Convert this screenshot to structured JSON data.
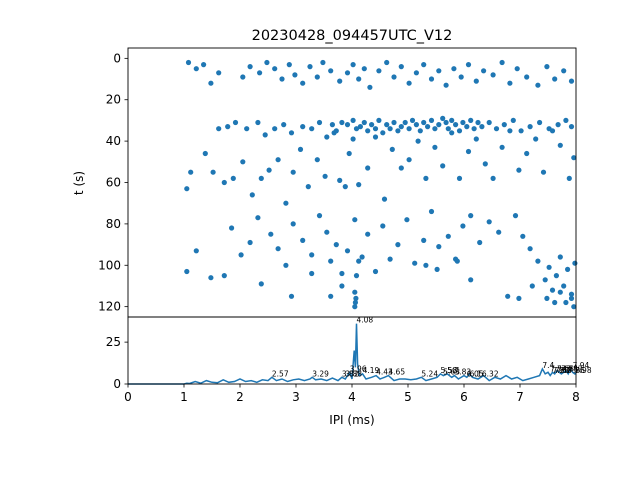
{
  "figure": {
    "title": "20230428_094457UTC_V12",
    "marker_color": "#1f77b4",
    "line_color": "#1f77b4"
  },
  "chart_data": [
    {
      "type": "scatter",
      "title": "20230428_094457UTC_V12",
      "xlabel": "",
      "ylabel": "t (s)",
      "xlim": [
        0,
        8
      ],
      "ylim": [
        125,
        -5
      ],
      "y_inverted": true,
      "x_ticks_shown": false,
      "yticks": [
        0,
        20,
        40,
        60,
        80,
        100,
        120
      ],
      "grid": false,
      "points": [
        [
          1.08,
          2
        ],
        [
          1.22,
          5
        ],
        [
          1.35,
          3
        ],
        [
          1.48,
          12
        ],
        [
          1.62,
          7
        ],
        [
          2.05,
          9
        ],
        [
          2.18,
          4
        ],
        [
          2.35,
          7
        ],
        [
          2.48,
          2
        ],
        [
          2.62,
          5
        ],
        [
          2.75,
          10
        ],
        [
          2.88,
          3
        ],
        [
          2.98,
          8
        ],
        [
          3.12,
          12
        ],
        [
          3.25,
          4
        ],
        [
          3.38,
          9
        ],
        [
          3.48,
          2
        ],
        [
          3.62,
          6
        ],
        [
          3.78,
          11
        ],
        [
          3.92,
          7
        ],
        [
          4.02,
          3
        ],
        [
          4.12,
          10
        ],
        [
          4.22,
          5
        ],
        [
          4.32,
          14
        ],
        [
          4.48,
          6
        ],
        [
          4.62,
          2
        ],
        [
          4.75,
          9
        ],
        [
          4.88,
          4
        ],
        [
          5.02,
          12
        ],
        [
          5.15,
          7
        ],
        [
          5.28,
          3
        ],
        [
          5.42,
          10
        ],
        [
          5.55,
          6
        ],
        [
          5.68,
          13
        ],
        [
          5.82,
          5
        ],
        [
          5.95,
          9
        ],
        [
          6.08,
          3
        ],
        [
          6.22,
          11
        ],
        [
          6.35,
          6
        ],
        [
          6.52,
          8
        ],
        [
          6.68,
          2
        ],
        [
          6.82,
          12
        ],
        [
          6.95,
          5
        ],
        [
          7.12,
          9
        ],
        [
          7.32,
          13
        ],
        [
          7.48,
          4
        ],
        [
          7.62,
          10
        ],
        [
          7.78,
          6
        ],
        [
          7.92,
          11
        ],
        [
          1.05,
          63
        ],
        [
          1.12,
          55
        ],
        [
          1.38,
          46
        ],
        [
          1.52,
          55
        ],
        [
          1.72,
          60
        ],
        [
          1.88,
          58
        ],
        [
          2.05,
          50
        ],
        [
          2.22,
          66
        ],
        [
          2.38,
          58
        ],
        [
          2.52,
          54
        ],
        [
          2.68,
          49
        ],
        [
          2.82,
          70
        ],
        [
          2.95,
          55
        ],
        [
          3.08,
          44
        ],
        [
          3.22,
          62
        ],
        [
          3.38,
          49
        ],
        [
          3.52,
          57
        ],
        [
          3.68,
          36
        ],
        [
          3.78,
          59
        ],
        [
          3.88,
          62
        ],
        [
          3.95,
          46
        ],
        [
          4.02,
          39
        ],
        [
          4.12,
          61
        ],
        [
          4.28,
          53
        ],
        [
          4.42,
          38
        ],
        [
          4.58,
          68
        ],
        [
          4.72,
          44
        ],
        [
          4.88,
          53
        ],
        [
          5.02,
          49
        ],
        [
          5.18,
          40
        ],
        [
          5.32,
          58
        ],
        [
          5.48,
          43
        ],
        [
          5.62,
          52
        ],
        [
          5.78,
          36
        ],
        [
          5.92,
          58
        ],
        [
          6.08,
          45
        ],
        [
          6.22,
          39
        ],
        [
          6.38,
          51
        ],
        [
          6.52,
          58
        ],
        [
          6.68,
          43
        ],
        [
          6.82,
          35
        ],
        [
          6.98,
          54
        ],
        [
          7.12,
          46
        ],
        [
          7.28,
          39
        ],
        [
          7.42,
          55
        ],
        [
          7.58,
          35
        ],
        [
          7.72,
          42
        ],
        [
          7.88,
          58
        ],
        [
          7.96,
          48
        ],
        [
          1.62,
          34
        ],
        [
          1.78,
          33
        ],
        [
          1.92,
          31
        ],
        [
          2.12,
          34
        ],
        [
          2.32,
          31
        ],
        [
          2.45,
          37
        ],
        [
          2.62,
          34
        ],
        [
          2.78,
          32
        ],
        [
          2.92,
          36
        ],
        [
          3.12,
          33
        ],
        [
          3.28,
          34
        ],
        [
          3.42,
          31
        ],
        [
          3.55,
          38
        ],
        [
          3.65,
          32
        ],
        [
          3.72,
          35
        ],
        [
          3.82,
          31
        ],
        [
          3.92,
          32
        ],
        [
          4.02,
          30
        ],
        [
          4.08,
          34
        ],
        [
          4.15,
          33
        ],
        [
          4.22,
          31
        ],
        [
          4.28,
          35
        ],
        [
          4.35,
          32
        ],
        [
          4.42,
          34
        ],
        [
          4.48,
          30
        ],
        [
          4.55,
          36
        ],
        [
          4.62,
          32
        ],
        [
          4.68,
          34
        ],
        [
          4.75,
          31
        ],
        [
          4.82,
          35
        ],
        [
          4.88,
          33
        ],
        [
          4.95,
          31
        ],
        [
          5.02,
          34
        ],
        [
          5.08,
          30
        ],
        [
          5.15,
          32
        ],
        [
          5.22,
          35
        ],
        [
          5.28,
          31
        ],
        [
          5.35,
          33
        ],
        [
          5.42,
          30
        ],
        [
          5.48,
          34
        ],
        [
          5.55,
          32
        ],
        [
          5.62,
          29
        ],
        [
          5.68,
          31
        ],
        [
          5.72,
          34
        ],
        [
          5.78,
          30
        ],
        [
          5.85,
          32
        ],
        [
          5.92,
          35
        ],
        [
          5.98,
          31
        ],
        [
          6.05,
          33
        ],
        [
          6.12,
          30
        ],
        [
          6.18,
          34
        ],
        [
          6.25,
          31
        ],
        [
          6.32,
          33
        ],
        [
          6.45,
          31
        ],
        [
          6.58,
          34
        ],
        [
          6.72,
          32
        ],
        [
          6.88,
          30
        ],
        [
          7.02,
          35
        ],
        [
          7.18,
          33
        ],
        [
          7.35,
          31
        ],
        [
          7.52,
          34
        ],
        [
          7.68,
          32
        ],
        [
          7.82,
          30
        ],
        [
          7.92,
          33
        ],
        [
          1.85,
          82
        ],
        [
          2.02,
          95
        ],
        [
          2.18,
          89
        ],
        [
          2.32,
          77
        ],
        [
          2.55,
          85
        ],
        [
          2.68,
          92
        ],
        [
          2.82,
          100
        ],
        [
          2.95,
          80
        ],
        [
          3.12,
          88
        ],
        [
          3.28,
          95
        ],
        [
          3.42,
          76
        ],
        [
          3.55,
          84
        ],
        [
          3.62,
          98
        ],
        [
          3.72,
          90
        ],
        [
          3.82,
          104
        ],
        [
          3.92,
          93
        ],
        [
          4.05,
          78
        ],
        [
          4.18,
          96
        ],
        [
          4.28,
          85
        ],
        [
          4.42,
          103
        ],
        [
          4.55,
          81
        ],
        [
          4.68,
          97
        ],
        [
          4.82,
          90
        ],
        [
          4.98,
          78
        ],
        [
          5.12,
          99
        ],
        [
          5.28,
          88
        ],
        [
          5.42,
          74
        ],
        [
          5.55,
          91
        ],
        [
          5.72,
          86
        ],
        [
          5.85,
          97
        ],
        [
          5.98,
          81
        ],
        [
          6.12,
          76
        ],
        [
          6.28,
          89
        ],
        [
          6.45,
          79
        ],
        [
          6.62,
          84
        ],
        [
          6.78,
          115
        ],
        [
          6.92,
          76
        ],
        [
          7.05,
          86
        ],
        [
          7.18,
          92
        ],
        [
          7.32,
          98
        ],
        [
          7.45,
          107
        ],
        [
          7.52,
          101
        ],
        [
          7.58,
          112
        ],
        [
          7.65,
          105
        ],
        [
          7.72,
          96
        ],
        [
          7.78,
          110
        ],
        [
          7.85,
          102
        ],
        [
          7.92,
          116
        ],
        [
          7.98,
          99
        ],
        [
          1.05,
          103
        ],
        [
          1.22,
          93
        ],
        [
          1.48,
          106
        ],
        [
          1.72,
          105
        ],
        [
          2.38,
          109
        ],
        [
          2.92,
          115
        ],
        [
          3.28,
          104
        ],
        [
          3.62,
          115
        ],
        [
          3.82,
          110
        ],
        [
          4.05,
          120
        ],
        [
          4.06,
          118
        ],
        [
          4.07,
          116
        ],
        [
          4.05,
          113
        ],
        [
          4.08,
          105
        ],
        [
          4.12,
          98
        ],
        [
          5.32,
          100
        ],
        [
          5.52,
          102
        ],
        [
          5.88,
          98
        ],
        [
          6.12,
          107
        ],
        [
          6.98,
          116
        ],
        [
          7.22,
          110
        ],
        [
          7.48,
          116
        ],
        [
          7.62,
          118
        ],
        [
          7.72,
          113
        ],
        [
          7.82,
          118
        ],
        [
          7.92,
          114
        ],
        [
          7.96,
          120
        ]
      ]
    },
    {
      "type": "line",
      "title": "",
      "xlabel": "IPI (ms)",
      "ylabel": "",
      "xlim": [
        0,
        8
      ],
      "ylim": [
        0,
        40
      ],
      "xticks": [
        0,
        1,
        2,
        3,
        4,
        5,
        6,
        7,
        8
      ],
      "yticks": [
        0,
        25
      ],
      "grid": false,
      "x": [
        0,
        0.5,
        1.0,
        1.05,
        1.1,
        1.2,
        1.3,
        1.4,
        1.5,
        1.6,
        1.7,
        1.8,
        1.9,
        2.0,
        2.1,
        2.2,
        2.3,
        2.4,
        2.5,
        2.57,
        2.65,
        2.75,
        2.85,
        2.95,
        3.05,
        3.15,
        3.25,
        3.29,
        3.35,
        3.45,
        3.55,
        3.65,
        3.75,
        3.82,
        3.88,
        3.92,
        3.96,
        4.0,
        4.04,
        4.06,
        4.08,
        4.1,
        4.13,
        4.19,
        4.25,
        4.35,
        4.43,
        4.5,
        4.58,
        4.65,
        4.75,
        4.85,
        4.95,
        5.05,
        5.15,
        5.24,
        5.32,
        5.42,
        5.52,
        5.58,
        5.63,
        5.7,
        5.78,
        5.83,
        5.9,
        6.0,
        6.05,
        6.1,
        6.15,
        6.25,
        6.35,
        6.45,
        6.55,
        6.65,
        6.75,
        6.85,
        6.95,
        7.05,
        7.15,
        7.25,
        7.35,
        7.4,
        7.45,
        7.5,
        7.54,
        7.58,
        7.62,
        7.66,
        7.7,
        7.74,
        7.78,
        7.82,
        7.86,
        7.9,
        7.94,
        7.98,
        8.0
      ],
      "y": [
        0,
        0,
        0,
        0.5,
        0.3,
        1.5,
        0.5,
        2,
        1,
        0.8,
        2.5,
        1,
        1.5,
        3,
        1.5,
        2,
        1,
        2.5,
        2,
        4,
        2,
        3,
        1.5,
        2.5,
        3,
        2,
        3,
        4,
        2.5,
        3,
        2,
        3.5,
        2,
        4,
        3,
        5,
        7,
        3,
        20,
        10,
        36,
        12,
        5,
        6,
        3,
        4,
        5,
        3,
        4,
        5,
        2,
        3,
        3,
        2.5,
        3,
        4,
        2,
        3,
        4,
        6,
        5,
        6,
        4,
        5,
        3,
        5,
        4,
        6,
        4,
        3,
        5,
        2,
        4,
        3,
        5,
        3,
        4,
        2,
        3,
        4,
        5,
        9,
        6,
        7,
        5,
        7,
        6,
        8,
        7,
        6,
        7,
        8,
        6,
        9,
        7,
        6,
        7
      ],
      "annotations": [
        {
          "x": 2.57,
          "y": 4,
          "text": "2.57"
        },
        {
          "x": 3.29,
          "y": 4,
          "text": "3.29"
        },
        {
          "x": 3.82,
          "y": 4,
          "text": "3.82"
        },
        {
          "x": 3.88,
          "y": 4,
          "text": "3.88"
        },
        {
          "x": 3.96,
          "y": 7,
          "text": "3.96"
        },
        {
          "x": 4.08,
          "y": 36,
          "text": "4.08"
        },
        {
          "x": 4.19,
          "y": 6,
          "text": "4.19"
        },
        {
          "x": 4.43,
          "y": 5,
          "text": "4.43"
        },
        {
          "x": 4.65,
          "y": 5,
          "text": "4.65"
        },
        {
          "x": 5.24,
          "y": 4,
          "text": "5.24"
        },
        {
          "x": 5.58,
          "y": 6,
          "text": "5.58"
        },
        {
          "x": 5.63,
          "y": 5,
          "text": "5.63"
        },
        {
          "x": 5.7,
          "y": 6,
          "text": "5.7"
        },
        {
          "x": 5.83,
          "y": 5,
          "text": "5.83"
        },
        {
          "x": 6.05,
          "y": 4,
          "text": "6.05"
        },
        {
          "x": 6.1,
          "y": 4,
          "text": "6.1"
        },
        {
          "x": 6.32,
          "y": 4,
          "text": "6.32"
        },
        {
          "x": 7.4,
          "y": 9,
          "text": "7.4"
        },
        {
          "x": 7.54,
          "y": 7,
          "text": "7.54"
        },
        {
          "x": 7.58,
          "y": 6,
          "text": "7.58"
        },
        {
          "x": 7.62,
          "y": 6,
          "text": "7.62"
        },
        {
          "x": 7.66,
          "y": 7,
          "text": "7.66"
        },
        {
          "x": 7.7,
          "y": 6,
          "text": "7.7"
        },
        {
          "x": 7.74,
          "y": 7,
          "text": "7.74"
        },
        {
          "x": 7.82,
          "y": 7,
          "text": "7.82"
        },
        {
          "x": 7.86,
          "y": 6,
          "text": "7.86"
        },
        {
          "x": 7.94,
          "y": 9,
          "text": "7.94"
        },
        {
          "x": 7.98,
          "y": 6,
          "text": "7.98"
        }
      ]
    }
  ]
}
